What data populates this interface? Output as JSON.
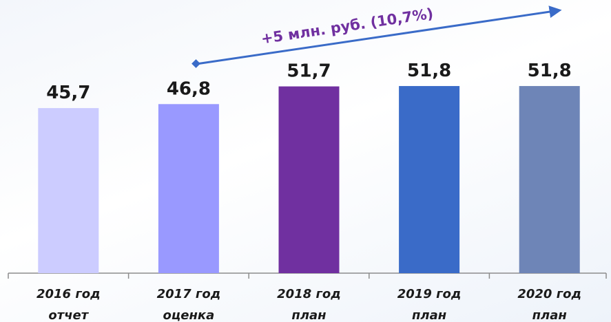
{
  "chart_data": {
    "type": "bar",
    "categories": [
      [
        "2016 год",
        "отчет"
      ],
      [
        "2017 год",
        "оценка"
      ],
      [
        "2018 год",
        "план"
      ],
      [
        "2019 год",
        "план"
      ],
      [
        "2020 год",
        "план"
      ]
    ],
    "values": [
      45.7,
      46.8,
      51.7,
      51.8,
      51.8
    ],
    "value_labels": [
      "45,7",
      "46,8",
      "51,7",
      "51,8",
      "51,8"
    ],
    "colors": [
      "#ccccff",
      "#9999ff",
      "#7030a0",
      "#3a6bc8",
      "#6e85b7"
    ],
    "ylim": [
      0,
      60
    ],
    "annotation": "+5 млн. руб. (10,7%)"
  }
}
